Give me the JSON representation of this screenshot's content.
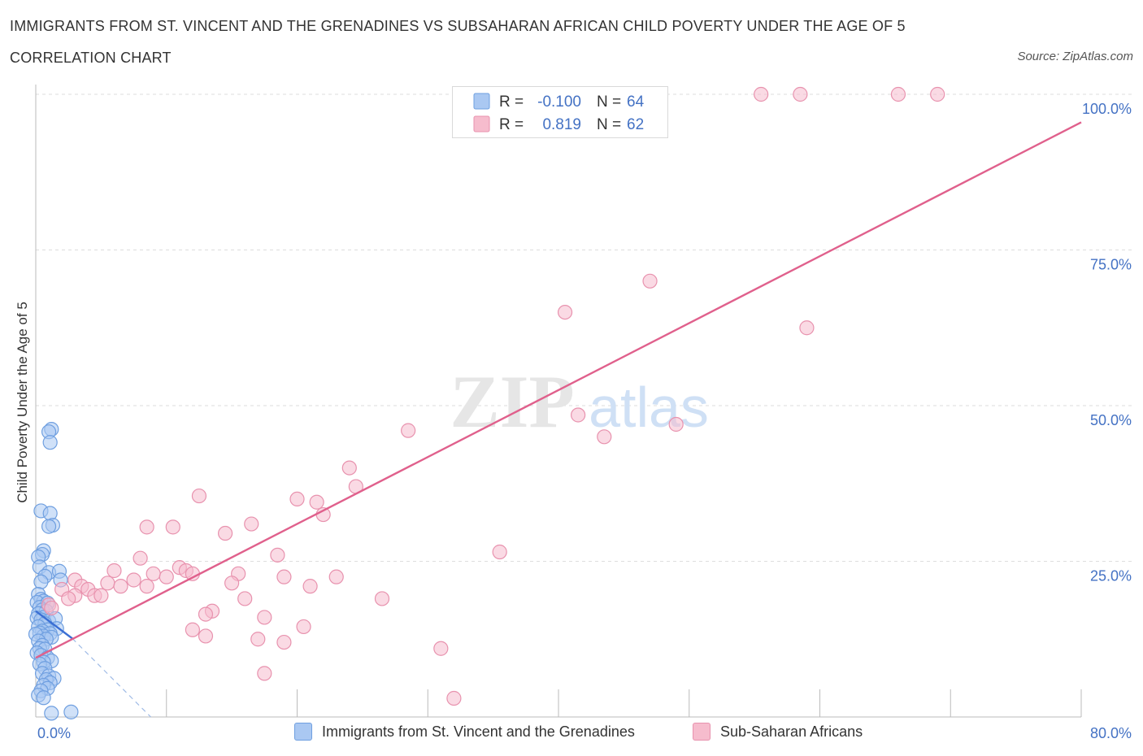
{
  "title": "IMMIGRANTS FROM ST. VINCENT AND THE GRENADINES VS SUBSAHARAN AFRICAN CHILD POVERTY UNDER THE AGE OF 5",
  "subtitle": "CORRELATION CHART",
  "source": "Source: ZipAtlas.com",
  "watermark": {
    "zip": "ZIP",
    "atlas": "atlas"
  },
  "colors": {
    "blue_fill": "#aac8f2",
    "blue_stroke": "#6f9fe0",
    "blue_line": "#3b6fd4",
    "pink_fill": "#f6bccd",
    "pink_stroke": "#e892ae",
    "pink_line": "#e0608c",
    "axis_label": "#4472c4",
    "grid": "#dddddd"
  },
  "legend": {
    "rows": [
      {
        "r_label": "R =",
        "r_value": "-0.100",
        "n_label": "N =",
        "n_value": "64"
      },
      {
        "r_label": "R =",
        "r_value": "0.819",
        "n_label": "N =",
        "n_value": "62"
      }
    ]
  },
  "chart_data": {
    "type": "scatter",
    "xlabel": "",
    "ylabel": "Child Poverty Under the Age of 5",
    "xlim": [
      0,
      80
    ],
    "ylim": [
      0,
      100
    ],
    "x_tick_labels": [
      "0.0%",
      "80.0%"
    ],
    "y_tick_labels": [
      "25.0%",
      "50.0%",
      "75.0%",
      "100.0%"
    ],
    "y_ticks": [
      25,
      50,
      75,
      100
    ],
    "series": [
      {
        "name": "Immigrants from St. Vincent and the Grenadines",
        "color": "blue",
        "r": -0.1,
        "n": 64,
        "trend": {
          "x": [
            0,
            2.8
          ],
          "y": [
            17.0,
            12.6
          ]
        },
        "trend_ext": {
          "x": [
            2.8,
            8.8
          ],
          "y": [
            12.6,
            0
          ]
        },
        "points": [
          [
            1.2,
            46.2
          ],
          [
            1.0,
            45.8
          ],
          [
            1.1,
            44.1
          ],
          [
            0.4,
            33.1
          ],
          [
            1.1,
            32.7
          ],
          [
            1.3,
            30.8
          ],
          [
            1.0,
            30.6
          ],
          [
            0.6,
            26.7
          ],
          [
            0.5,
            26.1
          ],
          [
            0.2,
            25.7
          ],
          [
            0.3,
            24.1
          ],
          [
            1.0,
            23.2
          ],
          [
            1.8,
            23.4
          ],
          [
            0.7,
            22.6
          ],
          [
            1.9,
            22.0
          ],
          [
            0.4,
            21.7
          ],
          [
            0.2,
            19.7
          ],
          [
            0.4,
            18.9
          ],
          [
            0.6,
            18.6
          ],
          [
            0.1,
            18.4
          ],
          [
            0.9,
            18.3
          ],
          [
            0.3,
            17.6
          ],
          [
            0.5,
            17.2
          ],
          [
            0.8,
            17.0
          ],
          [
            0.2,
            16.6
          ],
          [
            0.6,
            16.0
          ],
          [
            0.1,
            15.9
          ],
          [
            0.4,
            15.6
          ],
          [
            1.0,
            15.4
          ],
          [
            1.5,
            15.8
          ],
          [
            0.7,
            15.0
          ],
          [
            0.2,
            14.5
          ],
          [
            1.6,
            14.2
          ],
          [
            0.9,
            14.0
          ],
          [
            0.5,
            13.8
          ],
          [
            0.3,
            13.5
          ],
          [
            1.1,
            13.4
          ],
          [
            0.6,
            13.0
          ],
          [
            0.0,
            13.3
          ],
          [
            1.2,
            12.8
          ],
          [
            0.8,
            12.5
          ],
          [
            0.2,
            12.2
          ],
          [
            0.5,
            11.5
          ],
          [
            0.3,
            11.0
          ],
          [
            0.7,
            10.9
          ],
          [
            0.1,
            10.3
          ],
          [
            0.4,
            9.9
          ],
          [
            0.9,
            9.5
          ],
          [
            1.2,
            9.0
          ],
          [
            0.6,
            8.8
          ],
          [
            0.3,
            8.5
          ],
          [
            0.7,
            7.8
          ],
          [
            0.5,
            7.0
          ],
          [
            1.0,
            6.6
          ],
          [
            1.4,
            6.2
          ],
          [
            0.8,
            6.0
          ],
          [
            1.1,
            5.5
          ],
          [
            0.6,
            5.1
          ],
          [
            0.9,
            4.6
          ],
          [
            0.4,
            4.2
          ],
          [
            0.2,
            3.5
          ],
          [
            0.6,
            3.1
          ],
          [
            1.2,
            0.6
          ],
          [
            2.7,
            0.8
          ]
        ]
      },
      {
        "name": "Sub-Saharan Africans",
        "color": "pink",
        "r": 0.819,
        "n": 62,
        "trend": {
          "x": [
            0,
            80
          ],
          "y": [
            9.5,
            95.5
          ]
        },
        "points": [
          [
            55.5,
            100
          ],
          [
            58.5,
            100
          ],
          [
            66.0,
            100
          ],
          [
            69.0,
            100
          ],
          [
            47.0,
            70.0
          ],
          [
            40.5,
            65.0
          ],
          [
            59.0,
            62.5
          ],
          [
            28.5,
            46.0
          ],
          [
            41.5,
            48.5
          ],
          [
            43.5,
            45.0
          ],
          [
            49.0,
            47.0
          ],
          [
            24.0,
            40.0
          ],
          [
            24.5,
            37.0
          ],
          [
            12.5,
            35.5
          ],
          [
            20.0,
            35.0
          ],
          [
            21.5,
            34.5
          ],
          [
            22.0,
            32.5
          ],
          [
            16.5,
            31.0
          ],
          [
            8.5,
            30.5
          ],
          [
            10.5,
            30.5
          ],
          [
            14.5,
            29.5
          ],
          [
            35.5,
            26.5
          ],
          [
            18.5,
            26.0
          ],
          [
            8.0,
            25.5
          ],
          [
            6.0,
            23.5
          ],
          [
            11.0,
            24.0
          ],
          [
            11.5,
            23.5
          ],
          [
            12.0,
            23.0
          ],
          [
            9.0,
            23.0
          ],
          [
            10.0,
            22.5
          ],
          [
            15.5,
            23.0
          ],
          [
            19.0,
            22.5
          ],
          [
            23.0,
            22.5
          ],
          [
            3.0,
            22.0
          ],
          [
            7.5,
            22.0
          ],
          [
            5.5,
            21.5
          ],
          [
            15.0,
            21.5
          ],
          [
            21.0,
            21.0
          ],
          [
            8.5,
            21.0
          ],
          [
            3.5,
            21.0
          ],
          [
            6.5,
            21.0
          ],
          [
            4.0,
            20.5
          ],
          [
            2.0,
            20.5
          ],
          [
            4.5,
            19.5
          ],
          [
            5.0,
            19.5
          ],
          [
            3.0,
            19.5
          ],
          [
            2.5,
            19.0
          ],
          [
            16.0,
            19.0
          ],
          [
            26.5,
            19.0
          ],
          [
            1.0,
            18.0
          ],
          [
            1.2,
            17.5
          ],
          [
            13.5,
            17.0
          ],
          [
            13.0,
            16.5
          ],
          [
            17.5,
            16.0
          ],
          [
            12.0,
            14.0
          ],
          [
            20.5,
            14.5
          ],
          [
            13.0,
            13.0
          ],
          [
            17.0,
            12.5
          ],
          [
            19.0,
            12.0
          ],
          [
            31.0,
            11.0
          ],
          [
            17.5,
            7.0
          ],
          [
            32.0,
            3.0
          ]
        ]
      }
    ],
    "legend_position": "bottom",
    "grid": true
  }
}
